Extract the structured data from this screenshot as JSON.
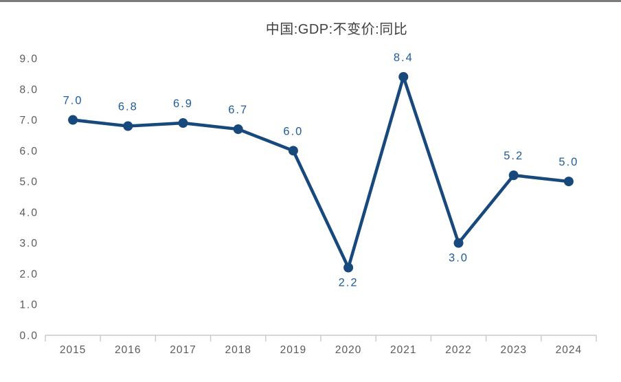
{
  "window": {
    "top_bar_color": "#7b7b7b"
  },
  "chart_data": {
    "type": "line",
    "title": "中国:GDP:不变价:同比",
    "x": [
      "2015",
      "2016",
      "2017",
      "2018",
      "2019",
      "2020",
      "2021",
      "2022",
      "2023",
      "2024"
    ],
    "series": [
      {
        "name": "中国:GDP:不变价:同比",
        "values": [
          7.0,
          6.8,
          6.9,
          6.7,
          6.0,
          2.2,
          8.4,
          3.0,
          5.2,
          5.0
        ]
      }
    ],
    "data_labels": [
      "7.0",
      "6.8",
      "6.9",
      "6.7",
      "6.0",
      "2.2",
      "8.4",
      "3.0",
      "5.2",
      "5.0"
    ],
    "data_label_positions": [
      "above",
      "above",
      "above",
      "above",
      "above",
      "below",
      "above",
      "below",
      "above",
      "above"
    ],
    "y_tick_labels": [
      "0.0",
      "1.0",
      "2.0",
      "3.0",
      "4.0",
      "5.0",
      "6.0",
      "7.0",
      "8.0",
      "9.0"
    ],
    "ylim": [
      0,
      9
    ],
    "xlabel": "",
    "ylabel": "",
    "grid": false,
    "legend_position": "none",
    "colors": {
      "line": "#17497c",
      "marker": "#17497c",
      "data_label": "#1e5c9a",
      "axis_line": "#c8c8c8",
      "tick_label": "#595959",
      "title": "#3f3f3f"
    }
  }
}
